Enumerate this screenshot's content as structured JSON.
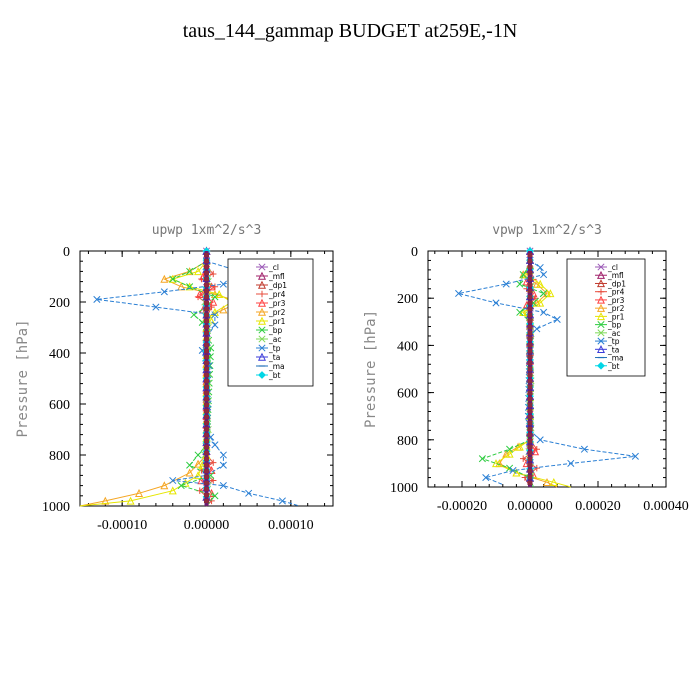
{
  "title": "taus_144_gammap  BUDGET at259E,-1N",
  "series_styles": [
    {
      "name": "_cl",
      "color": "#9b59b6",
      "marker": "x"
    },
    {
      "name": "_mfl",
      "color": "#a0206a",
      "marker": "tri"
    },
    {
      "name": "_dp1",
      "color": "#c0392b",
      "marker": "tri"
    },
    {
      "name": "_pr4",
      "color": "#e74c3c",
      "marker": "plus"
    },
    {
      "name": "_pr3",
      "color": "#ff4040",
      "marker": "tri"
    },
    {
      "name": "_pr2",
      "color": "#f5a623",
      "marker": "tri"
    },
    {
      "name": "_pr1",
      "color": "#e6e600",
      "marker": "tri"
    },
    {
      "name": "_bp",
      "color": "#2ecc40",
      "marker": "x"
    },
    {
      "name": "_ac",
      "color": "#7ed957",
      "marker": "x"
    },
    {
      "name": "_tp",
      "color": "#2a7fd4",
      "marker": "x"
    },
    {
      "name": "_ta",
      "color": "#3b3bd9",
      "marker": "tri"
    },
    {
      "name": "_ma",
      "color": "#1f6fb8",
      "marker": "dash"
    },
    {
      "name": "_bt",
      "color": "#00d6e6",
      "marker": "diamond"
    }
  ],
  "chart_data": [
    {
      "type": "line",
      "title": "upwp   1xm^2/s^3",
      "ylabel": "Pressure [hPa]",
      "xlabel": "",
      "xlim": [
        -0.00015,
        0.00015
      ],
      "ylim": [
        1000,
        0
      ],
      "x_ticks": [
        "-0.00010",
        "0.00000",
        "0.00010"
      ],
      "x_tick_values": [
        -0.0001,
        0,
        0.0001
      ],
      "y_ticks": [
        "0",
        "200",
        "400",
        "600",
        "800",
        "1000"
      ],
      "y_tick_values": [
        0,
        200,
        400,
        600,
        800,
        1000
      ],
      "legend": "top-right",
      "series": [
        {
          "name": "_cl",
          "y": [
            0,
            1000
          ],
          "x": [
            0,
            0
          ]
        },
        {
          "name": "_mfl",
          "y": [
            0,
            1000
          ],
          "x": [
            0,
            0
          ]
        },
        {
          "name": "_dp1",
          "y": [
            0,
            1000
          ],
          "x": [
            0,
            0
          ]
        },
        {
          "name": "_pr4",
          "y": [
            60,
            90,
            110,
            140,
            180,
            220,
            260,
            800,
            830,
            860,
            900,
            940,
            980,
            1000
          ],
          "x": [
            0,
            8e-06,
            -6e-06,
            1e-05,
            -1e-05,
            6e-06,
            0,
            0,
            8e-06,
            -6e-06,
            8e-06,
            -8e-06,
            6e-06,
            0
          ]
        },
        {
          "name": "_pr3",
          "y": [
            60,
            100,
            140,
            170,
            200,
            230,
            270,
            820,
            860,
            900,
            950,
            1000
          ],
          "x": [
            0,
            -4e-06,
            6e-06,
            -8e-06,
            8e-06,
            -4e-06,
            0,
            0,
            6e-06,
            -6e-06,
            6e-06,
            0
          ]
        },
        {
          "name": "_pr2",
          "y": [
            40,
            80,
            110,
            140,
            170,
            200,
            230,
            260,
            300,
            700,
            800,
            870,
            920,
            950,
            980,
            1000
          ],
          "x": [
            0,
            -2e-05,
            -5e-05,
            -3e-05,
            1e-05,
            4e-05,
            2e-05,
            0,
            0,
            0,
            0,
            -2e-05,
            -5e-05,
            -8e-05,
            -0.00012,
            -0.00015
          ]
        },
        {
          "name": "_pr1",
          "y": [
            40,
            80,
            110,
            140,
            170,
            200,
            240,
            300,
            700,
            800,
            880,
            940,
            980,
            1000
          ],
          "x": [
            0,
            -1e-05,
            -4e-05,
            -2e-05,
            1.5e-05,
            3e-05,
            1e-05,
            0,
            0,
            0,
            -1e-05,
            -4e-05,
            -9e-05,
            -0.00015
          ]
        },
        {
          "name": "_bp",
          "y": [
            40,
            80,
            110,
            140,
            180,
            220,
            250,
            280,
            320,
            380,
            760,
            800,
            840,
            880,
            920,
            960,
            1000
          ],
          "x": [
            0,
            -2e-05,
            -4e-05,
            -2e-05,
            1e-05,
            0,
            -1.5e-05,
            -5e-06,
            0,
            5e-06,
            0,
            -1e-05,
            -2e-05,
            5e-06,
            -3e-05,
            1e-05,
            0
          ]
        },
        {
          "name": "_ac",
          "y": [
            60,
            120,
            200,
            300,
            400,
            500,
            600,
            700,
            800,
            900,
            1000
          ],
          "x": [
            0,
            2e-06,
            -2e-06,
            2e-06,
            0,
            2e-06,
            0,
            2e-06,
            -2e-06,
            2e-06,
            0
          ]
        },
        {
          "name": "_tp",
          "y": [
            40,
            70,
            100,
            130,
            160,
            190,
            220,
            250,
            290,
            340,
            390,
            450,
            520,
            600,
            700,
            760,
            800,
            840,
            880,
            900,
            920,
            950,
            980,
            1000
          ],
          "x": [
            0,
            3e-05,
            6e-05,
            2e-05,
            -5e-05,
            -0.00013,
            -6e-05,
            1e-05,
            1e-05,
            0,
            -5e-06,
            3e-06,
            0,
            2e-06,
            0,
            1e-05,
            2e-05,
            2e-05,
            0,
            -4e-05,
            2e-05,
            5e-05,
            9e-05,
            0.00011
          ]
        },
        {
          "name": "_ta",
          "y": [
            0,
            1000
          ],
          "x": [
            0,
            0
          ]
        },
        {
          "name": "_ma",
          "y": [
            0,
            1000
          ],
          "x": [
            0,
            0
          ]
        },
        {
          "name": "_bt",
          "y": [
            0,
            1000
          ],
          "x": [
            0,
            0
          ]
        }
      ]
    },
    {
      "type": "line",
      "title": "vpwp   1xm^2/s^3",
      "ylabel": "Pressure [hPa]",
      "xlabel": "",
      "xlim": [
        -0.0003,
        0.0004
      ],
      "ylim": [
        1000,
        0
      ],
      "x_ticks": [
        "-0.00020",
        "0.00000",
        "0.00020",
        "0.00040"
      ],
      "x_tick_values": [
        -0.0002,
        0,
        0.0002,
        0.0004
      ],
      "y_ticks": [
        "0",
        "200",
        "400",
        "600",
        "800",
        "1000"
      ],
      "y_tick_values": [
        0,
        200,
        400,
        600,
        800,
        1000
      ],
      "legend": "top-right",
      "series": [
        {
          "name": "_cl",
          "y": [
            0,
            1000
          ],
          "x": [
            0,
            0
          ]
        },
        {
          "name": "_mfl",
          "y": [
            0,
            1000
          ],
          "x": [
            0,
            0
          ]
        },
        {
          "name": "_dp1",
          "y": [
            0,
            1000
          ],
          "x": [
            0,
            0
          ]
        },
        {
          "name": "_pr4",
          "y": [
            80,
            120,
            160,
            200,
            240,
            280,
            800,
            840,
            880,
            920,
            960,
            1000
          ],
          "x": [
            0,
            1e-05,
            -1e-05,
            1.5e-05,
            -1e-05,
            0,
            0,
            2e-05,
            -2e-05,
            2e-05,
            -1.5e-05,
            0
          ]
        },
        {
          "name": "_pr3",
          "y": [
            80,
            130,
            180,
            230,
            280,
            800,
            850,
            900,
            950,
            1000
          ],
          "x": [
            0,
            -1e-05,
            1e-05,
            -1e-05,
            0,
            0,
            1.5e-05,
            -1e-05,
            1e-05,
            0
          ]
        },
        {
          "name": "_pr2",
          "y": [
            60,
            100,
            140,
            180,
            220,
            260,
            300,
            700,
            800,
            860,
            900,
            940,
            980,
            1000
          ],
          "x": [
            0,
            -2e-05,
            2e-05,
            5e-05,
            2e-05,
            -2e-05,
            0,
            0,
            0,
            -7e-05,
            -9e-05,
            -4e-05,
            5e-05,
            8e-05
          ]
        },
        {
          "name": "_pr1",
          "y": [
            60,
            100,
            140,
            180,
            220,
            260,
            300,
            700,
            800,
            860,
            900,
            940,
            980,
            1000
          ],
          "x": [
            0,
            -1e-05,
            3e-05,
            6e-05,
            3e-05,
            -2e-05,
            0,
            0,
            0,
            -6e-05,
            -0.0001,
            -4e-05,
            7e-05,
            0.00012
          ]
        },
        {
          "name": "_bp",
          "y": [
            60,
            100,
            140,
            180,
            220,
            260,
            300,
            700,
            800,
            840,
            880,
            920,
            960,
            1000
          ],
          "x": [
            0,
            -2e-05,
            -3e-05,
            4e-05,
            1e-05,
            -3e-05,
            0,
            0,
            0,
            -6e-05,
            -0.00014,
            -6e-05,
            0,
            1e-05
          ]
        },
        {
          "name": "_ac",
          "y": [
            60,
            150,
            250,
            350,
            450,
            550,
            650,
            750,
            850,
            950,
            1000
          ],
          "x": [
            0,
            3e-06,
            -3e-06,
            3e-06,
            0,
            3e-06,
            0,
            3e-06,
            -3e-06,
            3e-06,
            0
          ]
        },
        {
          "name": "_tp",
          "y": [
            40,
            70,
            100,
            140,
            180,
            220,
            260,
            290,
            330,
            360,
            700,
            760,
            800,
            840,
            870,
            900,
            930,
            960,
            990
          ],
          "x": [
            0,
            3e-05,
            4e-05,
            -7e-05,
            -0.00021,
            -0.0001,
            4e-05,
            8e-05,
            2e-05,
            0,
            -5e-06,
            0,
            3e-05,
            0.00016,
            0.00031,
            0.00012,
            -5e-05,
            -0.00013,
            -8e-05
          ]
        },
        {
          "name": "_ta",
          "y": [
            0,
            1000
          ],
          "x": [
            0,
            0
          ]
        },
        {
          "name": "_ma",
          "y": [
            0,
            1000
          ],
          "x": [
            0,
            0
          ]
        },
        {
          "name": "_bt",
          "y": [
            0,
            1000
          ],
          "x": [
            0,
            0
          ]
        }
      ]
    }
  ]
}
